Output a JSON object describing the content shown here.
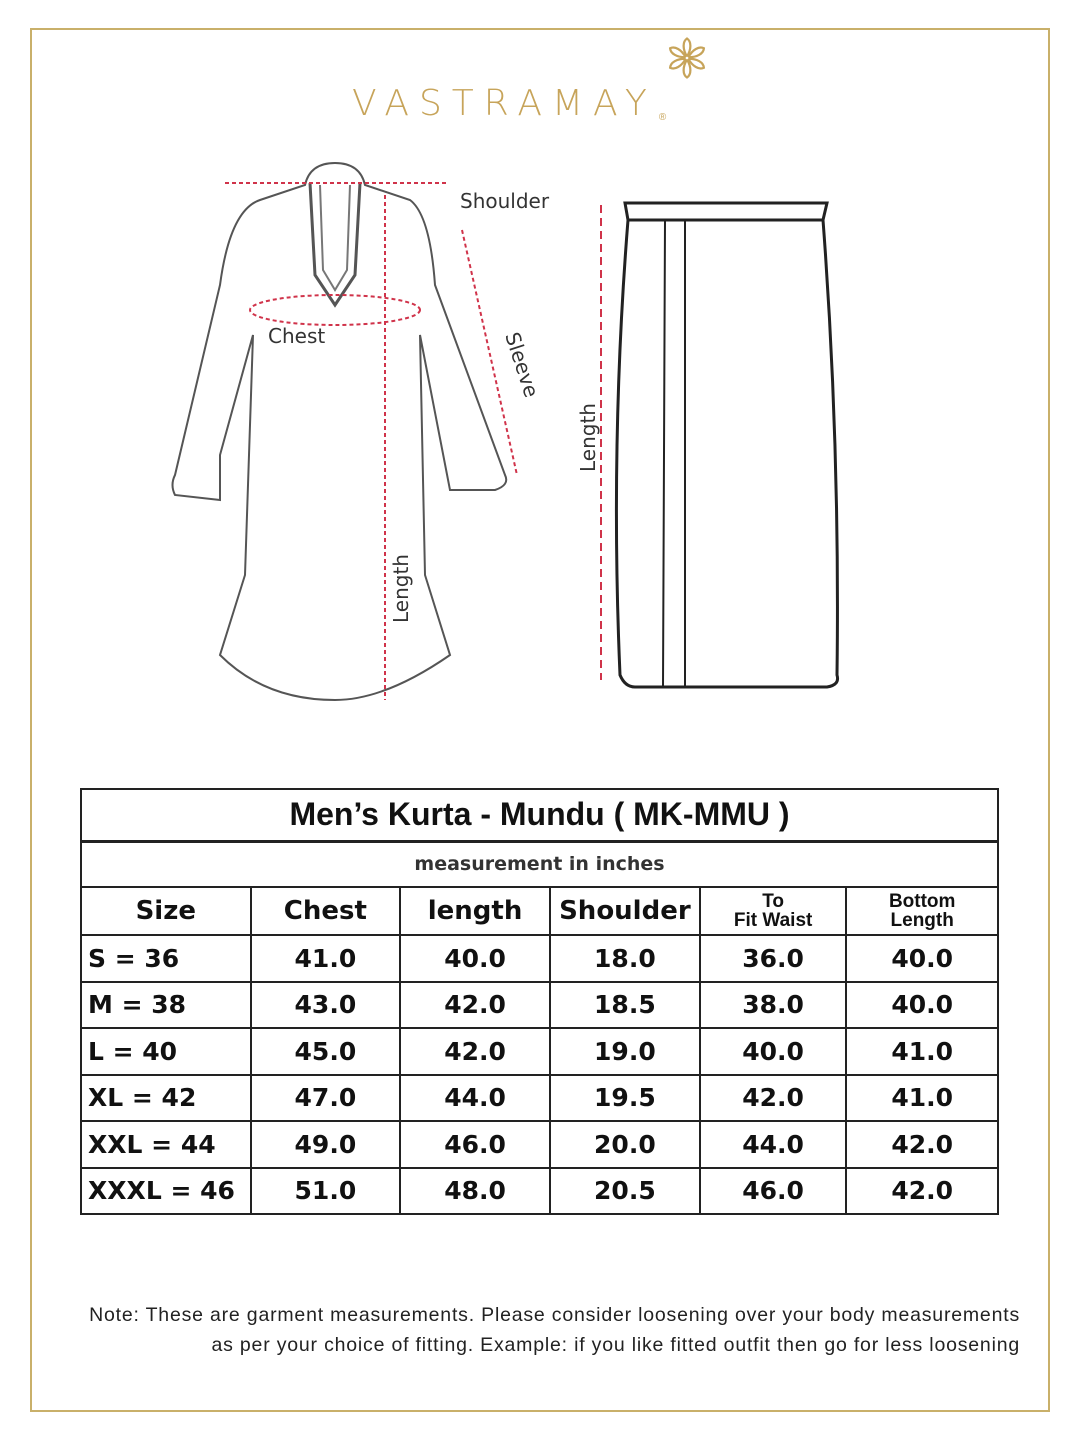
{
  "brand": {
    "name": "VASTRAMAY",
    "registered": "®",
    "color": "#c7a45a"
  },
  "diagram": {
    "kurta_labels": {
      "shoulder": "Shoulder",
      "chest": "Chest",
      "sleeve": "Sleeve",
      "length": "Length"
    },
    "mundu_labels": {
      "length": "Length"
    },
    "measure_line_color": "#d0334a"
  },
  "table": {
    "title": "Men’s Kurta - Mundu ( MK-MMU )",
    "subtitle": "measurement in inches",
    "headers": [
      "Size",
      "Chest",
      "length",
      "Shoulder",
      [
        "To",
        "Fit Waist"
      ],
      [
        "Bottom",
        "Length"
      ]
    ],
    "rows": [
      [
        "S = 36",
        "41.0",
        "40.0",
        "18.0",
        "36.0",
        "40.0"
      ],
      [
        "M = 38",
        "43.0",
        "42.0",
        "18.5",
        "38.0",
        "40.0"
      ],
      [
        "L = 40",
        "45.0",
        "42.0",
        "19.0",
        "40.0",
        "41.0"
      ],
      [
        "XL = 42",
        "47.0",
        "44.0",
        "19.5",
        "42.0",
        "41.0"
      ],
      [
        "XXL = 44",
        "49.0",
        "46.0",
        "20.0",
        "44.0",
        "42.0"
      ],
      [
        "XXXL = 46",
        "51.0",
        "48.0",
        "20.5",
        "46.0",
        "42.0"
      ]
    ]
  },
  "note": {
    "line1": "Note: These are garment measurements. Please consider loosening over your body measurements",
    "line2": "as per your choice of fitting. Example: if you like fitted outfit then go for less loosening"
  }
}
